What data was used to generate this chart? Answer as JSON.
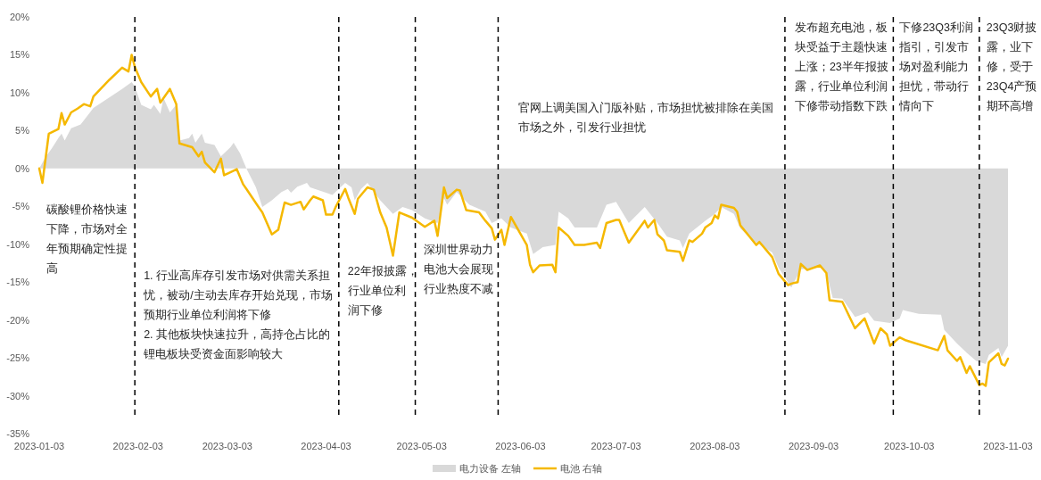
{
  "chart_data": {
    "type": "line",
    "xlim": [
      "2023-01-03",
      "2023-11-03"
    ],
    "xticks": [
      "2023-01-03",
      "2023-02-03",
      "2023-03-03",
      "2023-04-03",
      "2023-05-03",
      "2023-06-03",
      "2023-07-03",
      "2023-08-03",
      "2023-09-03",
      "2023-10-03",
      "2023-11-03"
    ],
    "ylim": [
      -35,
      20
    ],
    "yticks": [
      {
        "value": 20,
        "label": "20%"
      },
      {
        "value": 15,
        "label": "15%"
      },
      {
        "value": 10,
        "label": "10%"
      },
      {
        "value": 5,
        "label": "5%"
      },
      {
        "value": 0,
        "label": "0%"
      },
      {
        "value": -5,
        "label": "-5%"
      },
      {
        "value": -10,
        "label": "-10%"
      },
      {
        "value": -15,
        "label": "-15%"
      },
      {
        "value": -20,
        "label": "-20%"
      },
      {
        "value": -25,
        "label": "-25%"
      },
      {
        "value": -30,
        "label": "-30%"
      },
      {
        "value": -35,
        "label": "-35%"
      }
    ],
    "grid": false,
    "legend": "bottom",
    "series": [
      {
        "name": "电力设备 左轴",
        "type": "area",
        "color": "#d9d9d9",
        "x": [
          "2023-01-03",
          "2023-01-05",
          "2023-01-07",
          "2023-01-09",
          "2023-01-10",
          "2023-01-11",
          "2023-01-13",
          "2023-01-16",
          "2023-01-18",
          "2023-01-20",
          "2023-01-29",
          "2023-02-01",
          "2023-02-02",
          "2023-02-04",
          "2023-02-07",
          "2023-02-08",
          "2023-02-10",
          "2023-02-11",
          "2023-02-13",
          "2023-02-15",
          "2023-02-16",
          "2023-02-19",
          "2023-02-20",
          "2023-02-21",
          "2023-02-23",
          "2023-02-24",
          "2023-02-27",
          "2023-03-01",
          "2023-03-04",
          "2023-03-05",
          "2023-03-07",
          "2023-03-09",
          "2023-03-12",
          "2023-03-14",
          "2023-03-17",
          "2023-03-20",
          "2023-03-22",
          "2023-03-23",
          "2023-03-25",
          "2023-03-28",
          "2023-03-29",
          "2023-04-03",
          "2023-04-05",
          "2023-04-09",
          "2023-04-11",
          "2023-04-12",
          "2023-04-14",
          "2023-04-16",
          "2023-04-20",
          "2023-04-24",
          "2023-04-27",
          "2023-04-30",
          "2023-05-04",
          "2023-05-08",
          "2023-05-10",
          "2023-05-11",
          "2023-05-14",
          "2023-05-18",
          "2023-05-23",
          "2023-05-25",
          "2023-05-28",
          "2023-05-31",
          "2023-06-05",
          "2023-06-07",
          "2023-06-10",
          "2023-06-14",
          "2023-06-15",
          "2023-06-18",
          "2023-06-20",
          "2023-06-27",
          "2023-06-30",
          "2023-07-03",
          "2023-07-07",
          "2023-07-12",
          "2023-07-16",
          "2023-07-19",
          "2023-07-23",
          "2023-07-24",
          "2023-07-26",
          "2023-07-31",
          "2023-08-03",
          "2023-08-05",
          "2023-08-09",
          "2023-08-11",
          "2023-08-15",
          "2023-08-21",
          "2023-08-23",
          "2023-08-27",
          "2023-08-30",
          "2023-09-05",
          "2023-09-07",
          "2023-09-09",
          "2023-09-12",
          "2023-09-16",
          "2023-09-20",
          "2023-09-22",
          "2023-09-27",
          "2023-09-30",
          "2023-10-01",
          "2023-10-06",
          "2023-10-13",
          "2023-10-14",
          "2023-10-18",
          "2023-10-21",
          "2023-10-24",
          "2023-10-27",
          "2023-10-28",
          "2023-10-31",
          "2023-11-01",
          "2023-11-03"
        ],
        "values": [
          0,
          1.5,
          2.7,
          4,
          4.6,
          3.7,
          5.3,
          5.8,
          6.9,
          8,
          10.5,
          11.4,
          10.8,
          8.4,
          7.8,
          8.4,
          7.2,
          9.3,
          7.4,
          8.4,
          3.7,
          4,
          4.6,
          3.4,
          4.6,
          3.4,
          3.1,
          1.6,
          2.8,
          3.4,
          2,
          0,
          -2.5,
          -5.1,
          -4.2,
          -3.1,
          -2.7,
          -3.2,
          -2.4,
          -1.9,
          -2.5,
          -3.2,
          -3.5,
          -1.9,
          -2.5,
          -4.2,
          -2.7,
          -1.9,
          -4.2,
          -6,
          -5.1,
          -5.5,
          -6.6,
          -7.2,
          -3.9,
          -4.8,
          -3.1,
          -4.8,
          -5.7,
          -7.2,
          -6.6,
          -7.8,
          -8.6,
          -11.3,
          -10.4,
          -10.1,
          -5.7,
          -6.6,
          -7.8,
          -7.8,
          -4.8,
          -4.4,
          -7.2,
          -5.1,
          -7.2,
          -9,
          -9.5,
          -10.5,
          -8.6,
          -6.9,
          -6,
          -5.1,
          -6,
          -7.9,
          -9.5,
          -11.1,
          -13.1,
          -15.7,
          -13.3,
          -13.1,
          -13.7,
          -17.1,
          -17.2,
          -19.6,
          -19,
          -20.1,
          -20.4,
          -19.8,
          -18.7,
          -19.2,
          -19.3,
          -21.3,
          -23.1,
          -24.3,
          -25.4,
          -25.8,
          -24.6,
          -23.7,
          -24.9,
          -23.4
        ]
      },
      {
        "name": "电池 右轴",
        "color": "#f5b800",
        "x": [
          "2023-01-03",
          "2023-01-04",
          "2023-01-06",
          "2023-01-09",
          "2023-01-10",
          "2023-01-11",
          "2023-01-13",
          "2023-01-15",
          "2023-01-17",
          "2023-01-19",
          "2023-01-20",
          "2023-01-25",
          "2023-01-29",
          "2023-01-31",
          "2023-02-01",
          "2023-02-02",
          "2023-02-04",
          "2023-02-07",
          "2023-02-09",
          "2023-02-10",
          "2023-02-13",
          "2023-02-15",
          "2023-02-16",
          "2023-02-20",
          "2023-02-22",
          "2023-02-23",
          "2023-02-24",
          "2023-02-27",
          "2023-03-01",
          "2023-03-02",
          "2023-03-06",
          "2023-03-08",
          "2023-03-09",
          "2023-03-13",
          "2023-03-14",
          "2023-03-17",
          "2023-03-19",
          "2023-03-21",
          "2023-03-23",
          "2023-03-26",
          "2023-03-27",
          "2023-03-29",
          "2023-03-30",
          "2023-04-02",
          "2023-04-03",
          "2023-04-05",
          "2023-04-06",
          "2023-04-09",
          "2023-04-10",
          "2023-04-12",
          "2023-04-13",
          "2023-04-16",
          "2023-04-18",
          "2023-04-20",
          "2023-04-22",
          "2023-04-24",
          "2023-04-26",
          "2023-04-30",
          "2023-05-04",
          "2023-05-07",
          "2023-05-08",
          "2023-05-10",
          "2023-05-11",
          "2023-05-14",
          "2023-05-15",
          "2023-05-17",
          "2023-05-21",
          "2023-05-23",
          "2023-05-25",
          "2023-05-26",
          "2023-05-28",
          "2023-05-29",
          "2023-05-31",
          "2023-06-05",
          "2023-06-06",
          "2023-06-07",
          "2023-06-09",
          "2023-06-13",
          "2023-06-14",
          "2023-06-15",
          "2023-06-18",
          "2023-06-20",
          "2023-06-23",
          "2023-06-27",
          "2023-06-28",
          "2023-06-30",
          "2023-07-03",
          "2023-07-04",
          "2023-07-07",
          "2023-07-12",
          "2023-07-13",
          "2023-07-15",
          "2023-07-16",
          "2023-07-18",
          "2023-07-19",
          "2023-07-23",
          "2023-07-24",
          "2023-07-26",
          "2023-07-27",
          "2023-07-30",
          "2023-07-31",
          "2023-08-02",
          "2023-08-03",
          "2023-08-04",
          "2023-08-05",
          "2023-08-09",
          "2023-08-10",
          "2023-08-11",
          "2023-08-16",
          "2023-08-17",
          "2023-08-21",
          "2023-08-23",
          "2023-08-26",
          "2023-08-27",
          "2023-08-29",
          "2023-08-30",
          "2023-09-01",
          "2023-09-05",
          "2023-09-07",
          "2023-09-08",
          "2023-09-12",
          "2023-09-16",
          "2023-09-19",
          "2023-09-22",
          "2023-09-24",
          "2023-09-26",
          "2023-09-27",
          "2023-09-30",
          "2023-10-02",
          "2023-10-12",
          "2023-10-14",
          "2023-10-15",
          "2023-10-18",
          "2023-10-19",
          "2023-10-21",
          "2023-10-22",
          "2023-10-25",
          "2023-10-26",
          "2023-10-27",
          "2023-10-28",
          "2023-10-31",
          "2023-11-01",
          "2023-11-02",
          "2023-11-03"
        ],
        "values": [
          0,
          -1.9,
          4.6,
          5.2,
          7.3,
          5.8,
          7.4,
          7.9,
          8.5,
          8.2,
          9.5,
          11.7,
          13.3,
          12.8,
          15,
          13.4,
          11.4,
          9.5,
          10.5,
          8.7,
          10.5,
          8.5,
          3.3,
          2.8,
          1.6,
          2.2,
          0.8,
          -0.5,
          1.3,
          -0.9,
          -0.1,
          -2.1,
          -2.7,
          -5.2,
          -5.8,
          -8.7,
          -8.1,
          -4.5,
          -4.8,
          -4.4,
          -5.4,
          -4.2,
          -3.7,
          -4.2,
          -6.1,
          -6.1,
          -5.1,
          -2.7,
          -3.9,
          -6,
          -4,
          -2.5,
          -2.8,
          -5.8,
          -7.8,
          -11.5,
          -5.8,
          -6.5,
          -7.7,
          -6.9,
          -8.9,
          -2.5,
          -3.9,
          -2.8,
          -2.9,
          -5.5,
          -5.8,
          -6.9,
          -7.9,
          -9.4,
          -8.1,
          -10.1,
          -6.4,
          -10.1,
          -12.7,
          -13.7,
          -12.8,
          -12.7,
          -13.7,
          -7.8,
          -8.9,
          -10.1,
          -10.1,
          -9.8,
          -10.5,
          -7.2,
          -6.8,
          -6.8,
          -9.8,
          -6.9,
          -7.8,
          -6.8,
          -8.7,
          -9.5,
          -10.8,
          -11,
          -12.2,
          -9.5,
          -9.7,
          -8.6,
          -7.8,
          -7.2,
          -6.2,
          -6.6,
          -4.8,
          -5.2,
          -5.7,
          -7.5,
          -10.1,
          -9.7,
          -11.7,
          -13.9,
          -15.4,
          -15.2,
          -15,
          -12.6,
          -13.4,
          -12.8,
          -13.8,
          -17.4,
          -17.6,
          -21.1,
          -19.8,
          -23.1,
          -21.1,
          -21.9,
          -23.4,
          -22.3,
          -22.7,
          -24,
          -22.1,
          -24,
          -25.4,
          -24.9,
          -27,
          -26.1,
          -28.6,
          -28.4,
          -28.7,
          -25.6,
          -24.4,
          -25.8,
          -26,
          -25.1
        ]
      }
    ],
    "ref_lines": [
      {
        "axis": "x",
        "value": "2023-02-02",
        "color": "#000000",
        "line_style": "dashed"
      },
      {
        "axis": "x",
        "value": "2023-04-07",
        "color": "#000000",
        "line_style": "dashed"
      },
      {
        "axis": "x",
        "value": "2023-05-01",
        "color": "#000000",
        "line_style": "dashed"
      },
      {
        "axis": "x",
        "value": "2023-05-27",
        "color": "#000000",
        "line_style": "dashed"
      },
      {
        "axis": "x",
        "value": "2023-08-25",
        "color": "#000000",
        "line_style": "dashed"
      },
      {
        "axis": "x",
        "value": "2023-09-28",
        "color": "#000000",
        "line_style": "dashed"
      },
      {
        "axis": "x",
        "value": "2023-10-25",
        "color": "#000000",
        "line_style": "dashed"
      }
    ],
    "annotations": [
      "碳酸锂价格快速下降，市场对全年预期确定性提高",
      "1. 行业高库存引发市场对供需关系担忧，被动/主动去库存开始兑现，市场预期行业单位利润将下修\n2. 其他板块快速拉升，高持仓占比的锂电板块受资金面影响较大",
      "22年报披露，行业单位利润下修",
      "深圳世界动力电池大会展现行业热度不减",
      "官网上调美国入门版补贴，市场担忧被排除在美国市场之外，引发行业担忧",
      "发布超充电池，板块受益于主题快速上涨；23半年报披露，行业单位利润下修带动指数下跌",
      "下修23Q3利润指引，引发市场对盈利能力担忧，带动行情向下",
      "23Q3财披露，业下修，受于23Q4产预期环高增"
    ]
  }
}
